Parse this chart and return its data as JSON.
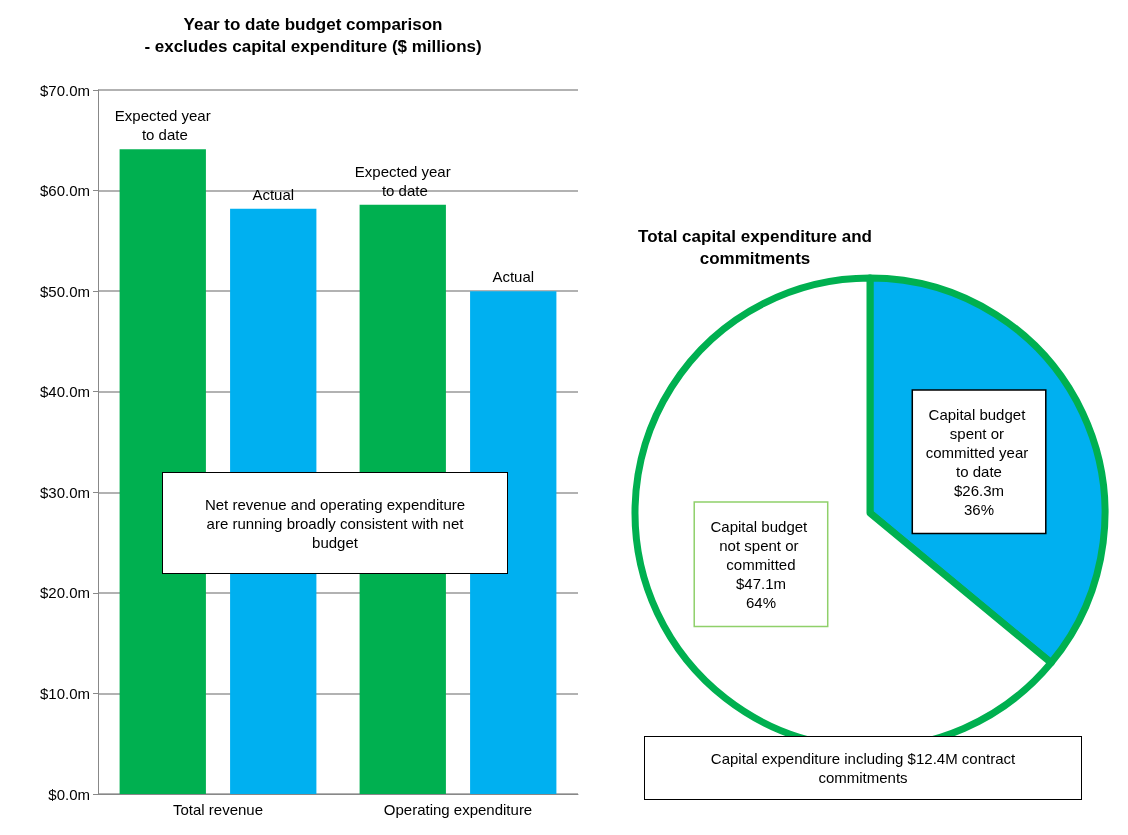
{
  "chart_data": [
    {
      "type": "bar",
      "title": "Year to date budget comparison\n- excludes capital expenditure ($ millions)",
      "categories": [
        "Total revenue",
        "Operating expenditure"
      ],
      "series": [
        {
          "name": "Expected year to date",
          "color": "#00b050",
          "values": [
            64.1,
            58.6
          ]
        },
        {
          "name": "Actual",
          "color": "#00b0f0",
          "values": [
            58.2,
            50.0
          ]
        }
      ],
      "ylim": [
        0,
        70
      ],
      "yticks": [
        {
          "value": 0,
          "label": "$0.0m"
        },
        {
          "value": 10,
          "label": "$10.0m"
        },
        {
          "value": 20,
          "label": "$20.0m"
        },
        {
          "value": 30,
          "label": "$30.0m"
        },
        {
          "value": 40,
          "label": "$40.0m"
        },
        {
          "value": 50,
          "label": "$50.0m"
        },
        {
          "value": 60,
          "label": "$60.0m"
        },
        {
          "value": 70,
          "label": "$70.0m"
        }
      ],
      "grid": "y",
      "legend": false,
      "annotations": [
        "Net revenue and operating expenditure are running broadly consistent with net budget"
      ]
    },
    {
      "type": "pie",
      "title": "Total capital expenditure and\ncommitments",
      "categories": [
        "Capital budget spent or committed year to date",
        "Capital budget not spent or committed"
      ],
      "values": [
        36,
        64
      ],
      "colors": [
        "#00b0f0",
        "#ffffff"
      ],
      "value_labels": [
        "$26.3m\n36%",
        "$47.1m\n64%"
      ],
      "legend": false,
      "annotations": [
        "Capital expenditure including $12.4M contract commitments"
      ]
    }
  ]
}
